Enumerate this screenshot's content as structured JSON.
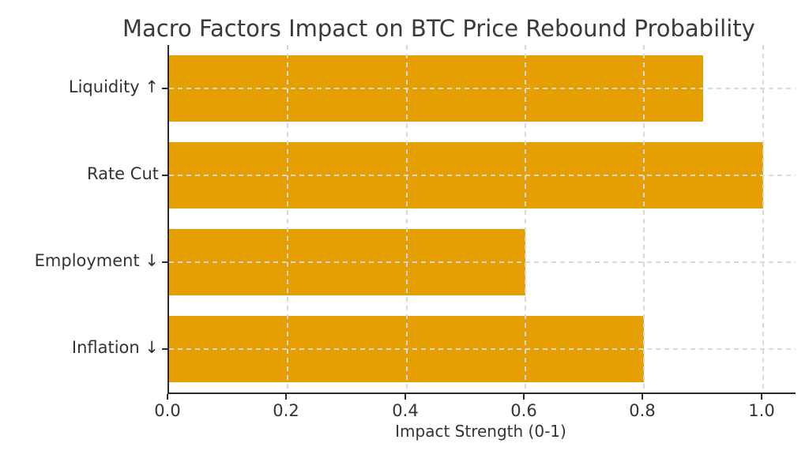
{
  "chart_data": {
    "type": "bar",
    "orientation": "horizontal",
    "title": "Macro Factors Impact on BTC Price Rebound Probability",
    "xlabel": "Impact Strength (0-1)",
    "ylabel": "",
    "categories": [
      "Liquidity ↑",
      "Rate Cut",
      "Employment ↓",
      "Inflation ↓"
    ],
    "values": [
      0.9,
      1.0,
      0.6,
      0.8
    ],
    "x_ticks": [
      0.0,
      0.2,
      0.4,
      0.6,
      0.8,
      1.0
    ],
    "x_tick_labels": [
      "0.0",
      "0.2",
      "0.4",
      "0.6",
      "0.8",
      "1.0"
    ],
    "xlim": [
      0,
      1.055
    ],
    "grid": true,
    "grid_style": "dashed",
    "legend": "none",
    "colors": {
      "bar": "#E69F00",
      "grid": "#d9d9d9",
      "spine": "#2b2b2b",
      "text": "#3a3a3a"
    }
  }
}
